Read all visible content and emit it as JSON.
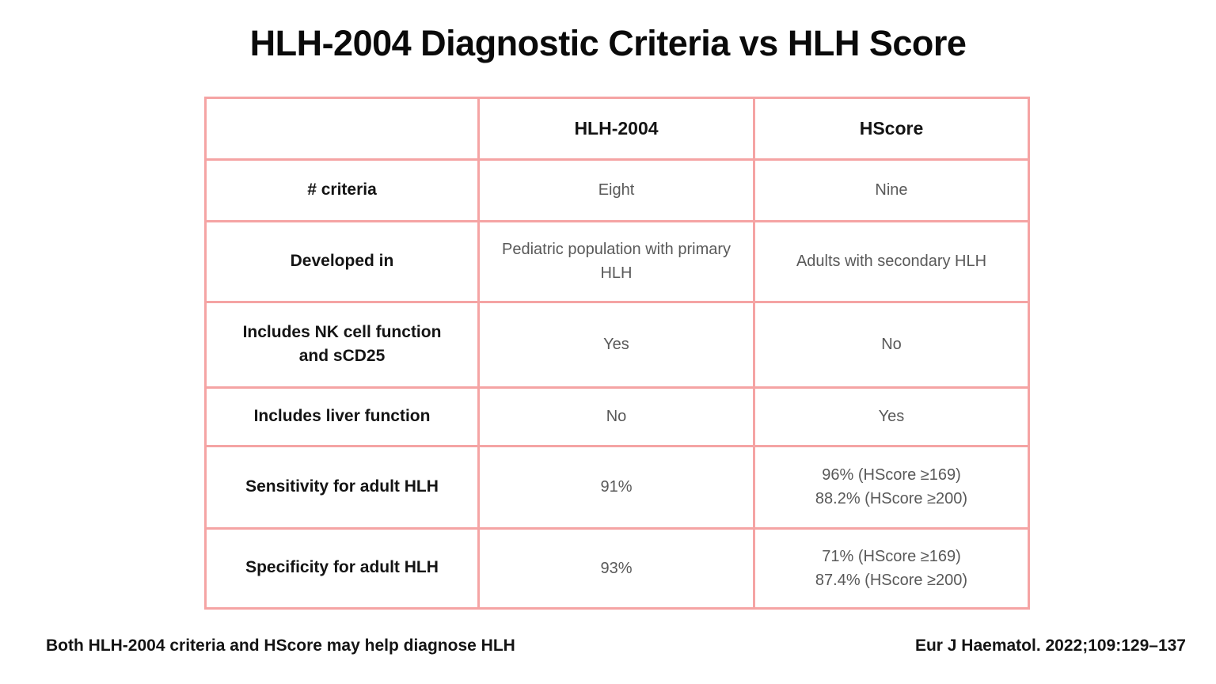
{
  "page": {
    "title": "HLH-2004 Diagnostic Criteria vs HLH Score"
  },
  "table": {
    "header": {
      "row_label": "",
      "col_hlh2004": "HLH-2004",
      "col_hscore": "HScore"
    },
    "rows": [
      {
        "label": "# criteria",
        "hlh2004": [
          "Eight"
        ],
        "hscore": [
          "Nine"
        ]
      },
      {
        "label": "Developed in",
        "hlh2004": [
          "Pediatric population with primary HLH"
        ],
        "hscore": [
          "Adults with secondary HLH"
        ]
      },
      {
        "label": "Includes NK cell function and sCD25",
        "hlh2004": [
          "Yes"
        ],
        "hscore": [
          "No"
        ]
      },
      {
        "label": "Includes liver function",
        "hlh2004": [
          "No"
        ],
        "hscore": [
          "Yes"
        ]
      },
      {
        "label": "Sensitivity for adult HLH",
        "hlh2004": [
          "91%"
        ],
        "hscore": [
          "96% (HScore ≥169)",
          "88.2% (HScore ≥200)"
        ]
      },
      {
        "label": "Specificity for adult HLH",
        "hlh2004": [
          "93%"
        ],
        "hscore": [
          "71% (HScore ≥169)",
          "87.4% (HScore ≥200)"
        ]
      }
    ]
  },
  "footer": {
    "takeaway": "Both HLH-2004 criteria and HScore may help diagnose HLH",
    "citation": "Eur J Haematol. 2022;109:129–137"
  },
  "colors": {
    "table_border": "#F5A4A4",
    "heading_text": "#141414",
    "value_text": "#595959",
    "background": "#FFFFFF"
  }
}
